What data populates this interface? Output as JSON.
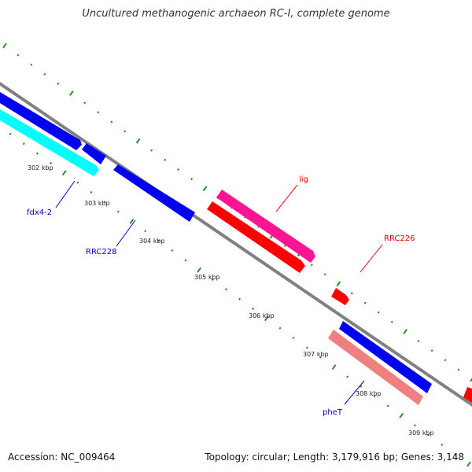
{
  "title": "Uncultured methanogenic archaeon RC-I, complete genome",
  "footer": {
    "accession": "Accession: NC_009464",
    "summary": "Topology: circular; Length: 3,179,916 bp; Genes: 3,148"
  },
  "colors": {
    "backbone": "#808080",
    "tick": "#2e8b2e",
    "forward_blue": "#0000ee",
    "cyan": "#00ffff",
    "magenta": "#ff1493",
    "red": "#ff0000",
    "salmon": "#f08080",
    "label_blue": "#0000cc",
    "label_red": "#e00000"
  },
  "ticks": [
    {
      "kbp": 302,
      "label": "302 kbp"
    },
    {
      "kbp": 303,
      "label": "303 kbp"
    },
    {
      "kbp": 304,
      "label": "304 kbp"
    },
    {
      "kbp": 305,
      "label": "305 kbp"
    },
    {
      "kbp": 306,
      "label": "306 kbp"
    },
    {
      "kbp": 307,
      "label": "307 kbp"
    },
    {
      "kbp": 308,
      "label": "308 kbp"
    },
    {
      "kbp": 309,
      "label": "309 kbp"
    }
  ],
  "genes": [
    {
      "label": "fdx4-2",
      "strand": "reverse",
      "color": "cyan"
    },
    {
      "label": "RRC228",
      "strand": "reverse",
      "color": "forward_blue"
    },
    {
      "label": "lig",
      "strand": "forward",
      "color": "magenta"
    },
    {
      "label": "RRC226",
      "strand": "forward",
      "color": "red"
    },
    {
      "label": "pheT",
      "strand": "reverse",
      "color": "salmon"
    }
  ]
}
